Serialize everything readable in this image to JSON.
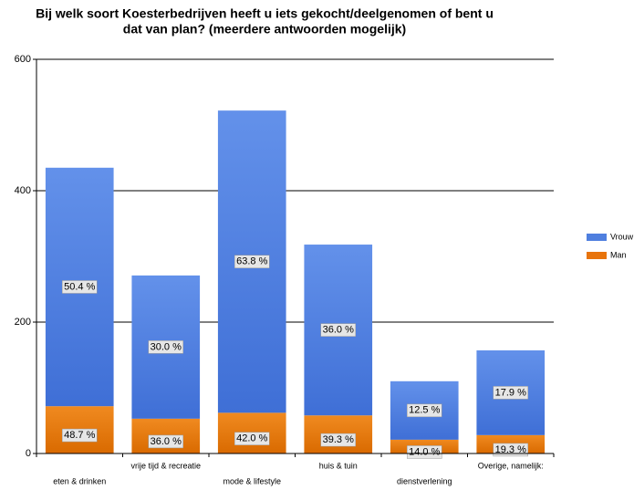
{
  "chart_data": {
    "type": "stacked_bar",
    "title": [
      "Bij welk soort Koesterbedrijven heeft u iets gekocht/deelgenomen of bent u",
      "dat van plan? (meerdere antwoorden mogelijk)"
    ],
    "categories": [
      "eten & drinken",
      "vrije tijd & recreatie",
      "mode & lifestyle",
      "huis & tuin",
      "dienstverlening",
      "Overige, namelijk:"
    ],
    "series": [
      {
        "name": "Man",
        "color": "#e8740c",
        "values": [
          72,
          53,
          62,
          58,
          21,
          28
        ],
        "labels": [
          "48.7 %",
          "36.0 %",
          "42.0 %",
          "39.3 %",
          "14.0 %",
          "19.3 %"
        ]
      },
      {
        "name": "Vrouw",
        "color": "#4f7fdf",
        "values": [
          363,
          218,
          460,
          260,
          89,
          129
        ],
        "labels": [
          "50.4 %",
          "30.0 %",
          "63.8 %",
          "36.0 %",
          "12.5 %",
          "17.9 %"
        ]
      }
    ],
    "ylim": [
      0,
      600
    ],
    "yticks": [
      0,
      200,
      400,
      600
    ],
    "grid": true,
    "legend": "right"
  }
}
